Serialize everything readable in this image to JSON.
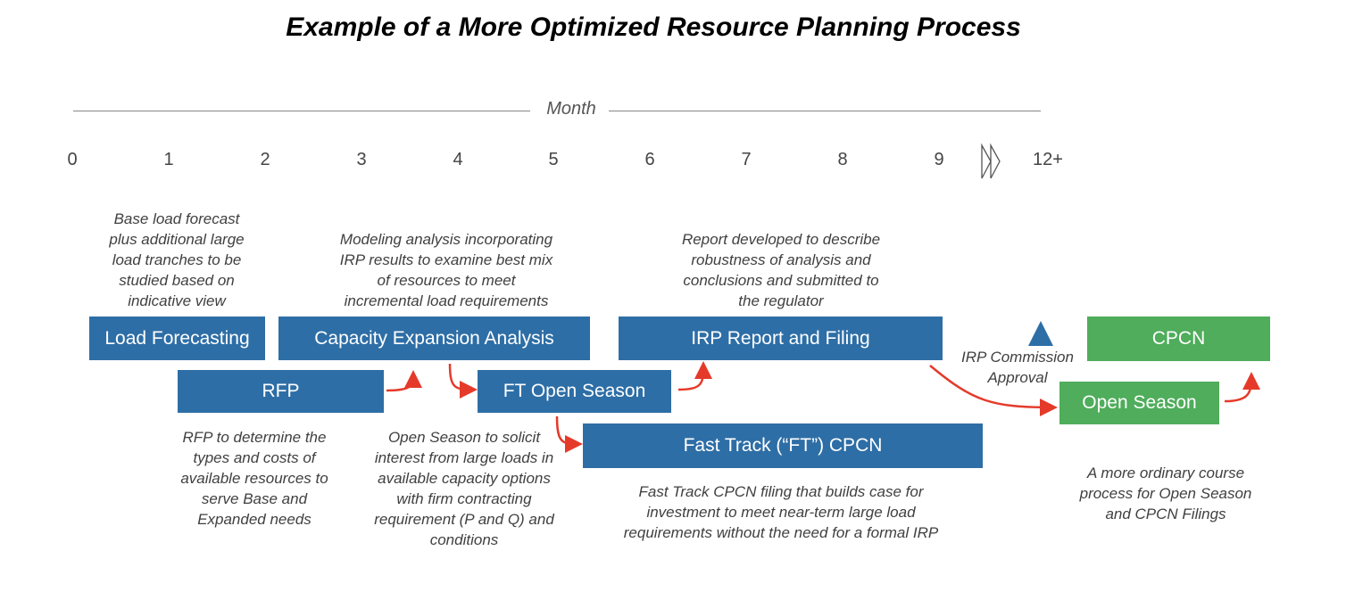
{
  "title": "Example of a More Optimized Resource Planning Process",
  "timeline": {
    "axis_label": "Month",
    "ticks": [
      "0",
      "1",
      "2",
      "3",
      "4",
      "5",
      "6",
      "7",
      "8",
      "9",
      "12+"
    ],
    "break_icon": "double-chevron-right-icon"
  },
  "boxes": {
    "load_forecasting": "Load Forecasting",
    "capacity_expansion": "Capacity Expansion Analysis",
    "irp_report": "IRP Report and Filing",
    "rfp": "RFP",
    "ft_open_season": "FT Open Season",
    "fast_track_cpcn": "Fast Track (“FT”) CPCN",
    "cpcn": "CPCN",
    "open_season": "Open Season"
  },
  "notes": {
    "load_forecasting": "Base load forecast\nplus additional large\nload tranches to be\nstudied based on\nindicative view",
    "capacity_expansion": "Modeling analysis incorporating\nIRP results to examine best mix\nof resources to meet\nincremental load requirements",
    "irp_report": "Report developed to describe\nrobustness of analysis and\nconclusions and submitted to\nthe regulator",
    "rfp": "RFP to determine the\ntypes and costs of\navailable resources to\nserve Base and\nExpanded needs",
    "ft_open_season": "Open Season to solicit\ninterest from large loads in\navailable capacity options\nwith firm contracting\nrequirement (P and Q) and\nconditions",
    "fast_track_cpcn": "Fast Track CPCN filing that builds case for\ninvestment to meet near-term large load\nrequirements without the need for a formal IRP",
    "milestone": "IRP Commission\nApproval",
    "ordinary": "A more ordinary course\nprocess for Open Season\nand CPCN Filings"
  },
  "colors": {
    "blue": "#2e6ea6",
    "green": "#4fad5b",
    "arrow": "#e53a2a"
  }
}
